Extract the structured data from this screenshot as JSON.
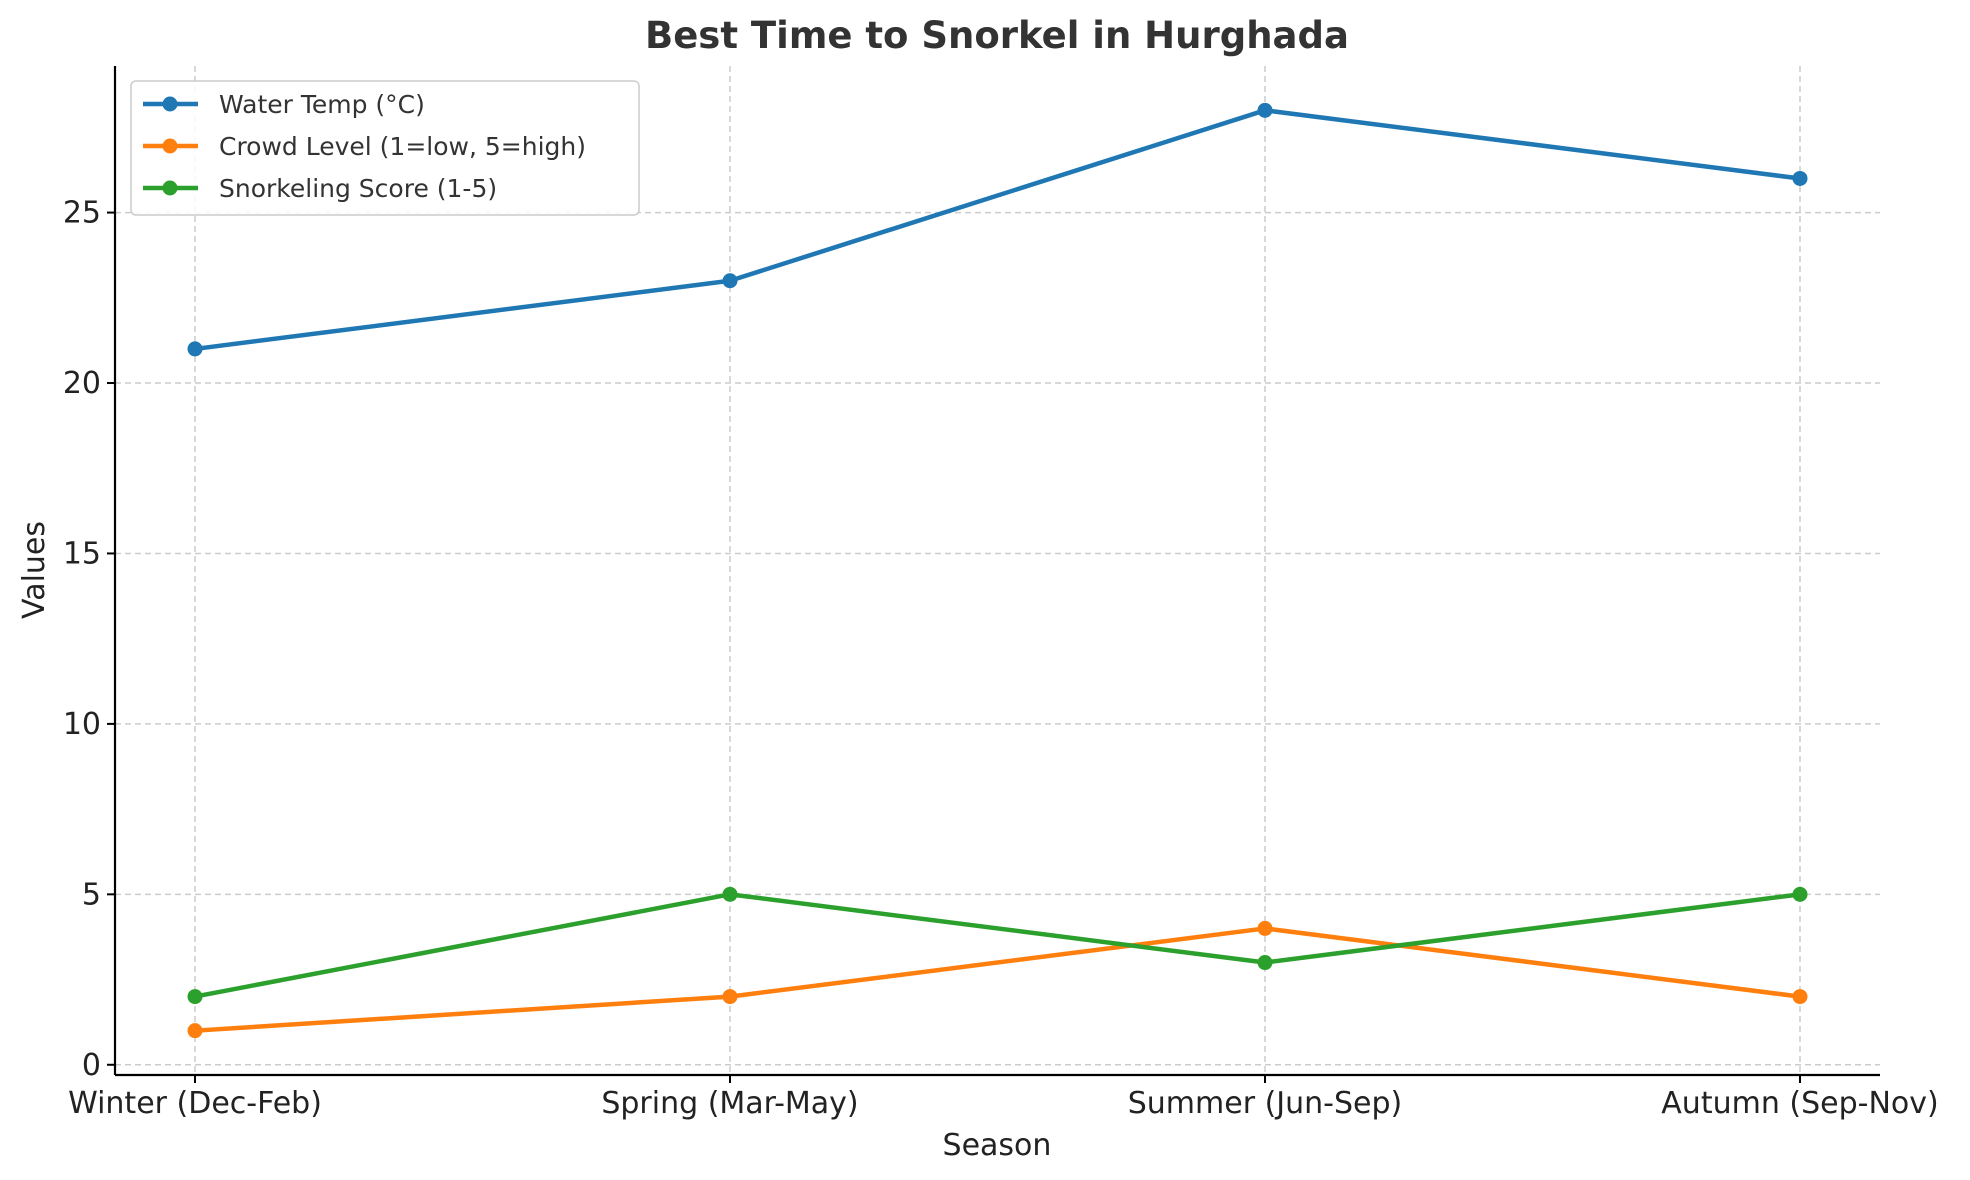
{
  "chart_data": {
    "type": "line",
    "title": "Best Time to Snorkel in Hurghada",
    "xlabel": "Season",
    "ylabel": "Values",
    "categories": [
      "Winter (Dec-Feb)",
      "Spring (Mar-May)",
      "Summer (Jun-Sep)",
      "Autumn (Sep-Nov)"
    ],
    "ylim": [
      -0.3,
      29.3
    ],
    "yticks": [
      0,
      5,
      10,
      15,
      20,
      25
    ],
    "grid": true,
    "legend_position": "top-left",
    "series": [
      {
        "name": "Water Temp (°C)",
        "color": "#1f77b4",
        "values": [
          21,
          23,
          28,
          26
        ]
      },
      {
        "name": "Crowd Level (1=low, 5=high)",
        "color": "#ff7f0e",
        "values": [
          1,
          2,
          4,
          2
        ]
      },
      {
        "name": "Snorkeling Score (1-5)",
        "color": "#2ca02c",
        "values": [
          2,
          5,
          3,
          5
        ]
      }
    ]
  }
}
